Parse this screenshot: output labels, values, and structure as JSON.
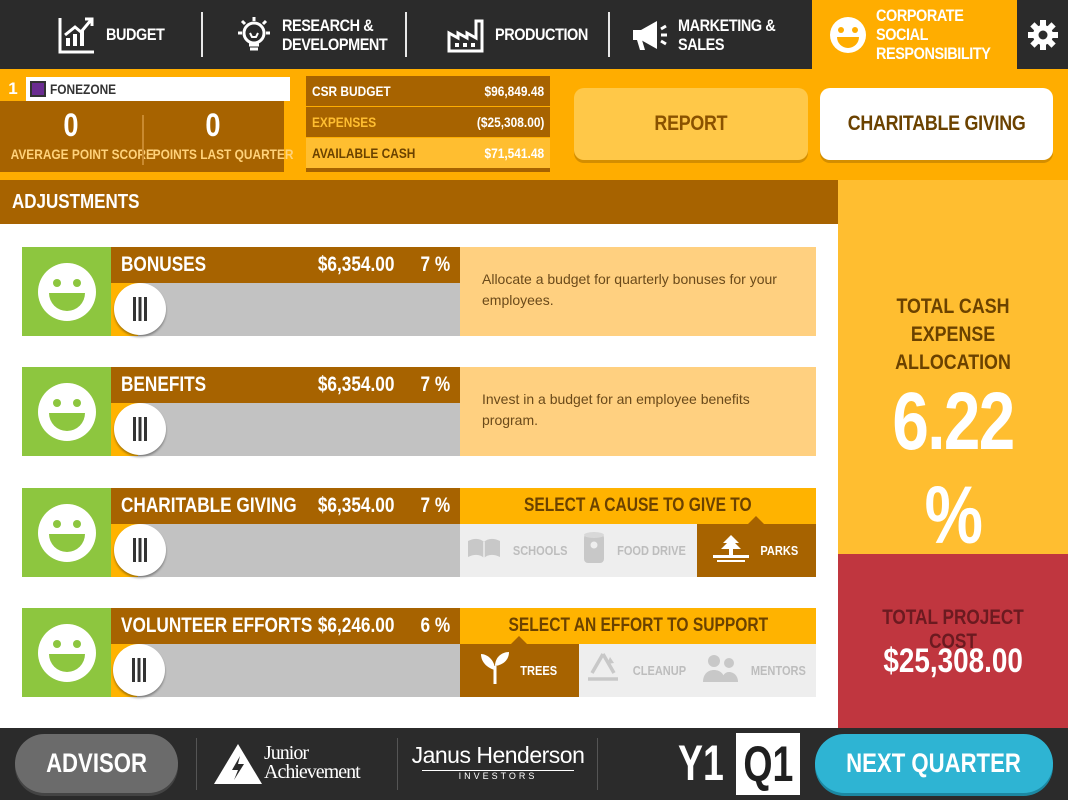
{
  "nav": {
    "tabs": [
      {
        "label": "BUDGET",
        "icon": "chart-up-icon"
      },
      {
        "label": "RESEARCH &\nDEVELOPMENT",
        "icon": "lightbulb-icon"
      },
      {
        "label": "PRODUCTION",
        "icon": "factory-icon"
      },
      {
        "label": "MARKETING &\nSALES",
        "icon": "megaphone-icon"
      },
      {
        "label": "CORPORATE SOCIAL\nRESPONSIBILITY",
        "icon": "smiley-icon",
        "active": true
      }
    ],
    "settings_icon": "gear-icon"
  },
  "team": {
    "rank": "1",
    "name": "FONEZONE",
    "average_point_score": "0",
    "average_point_score_label": "AVERAGE POINT SCORE",
    "points_last_quarter": "0",
    "points_last_quarter_label": "POINTS LAST QUARTER"
  },
  "budget": {
    "csr_budget_label": "CSR BUDGET",
    "csr_budget_value": "$96,849.48",
    "expenses_label": "EXPENSES",
    "expenses_value": "($25,308.00)",
    "available_cash_label": "AVAILABLE CASH",
    "available_cash_value": "$71,541.48"
  },
  "header_buttons": {
    "report": "REPORT",
    "charitable_giving": "CHARITABLE GIVING"
  },
  "adjustments": {
    "title": "ADJUSTMENTS",
    "rows": [
      {
        "name": "BONUSES",
        "amount": "$6,354.00",
        "percent": "7 %",
        "slider_fraction": 0.07,
        "description": "Allocate a budget for quarterly bonuses for your employees."
      },
      {
        "name": "BENEFITS",
        "amount": "$6,354.00",
        "percent": "7 %",
        "slider_fraction": 0.07,
        "description": "Invest in a budget for an employee benefits program."
      },
      {
        "name": "CHARITABLE GIVING",
        "amount": "$6,354.00",
        "percent": "7 %",
        "slider_fraction": 0.07,
        "select_title": "SELECT A CAUSE TO GIVE TO",
        "options": [
          {
            "label": "SCHOOLS",
            "icon": "book-icon",
            "selected": false
          },
          {
            "label": "FOOD DRIVE",
            "icon": "can-icon",
            "selected": false
          },
          {
            "label": "PARKS",
            "icon": "tree-icon",
            "selected": true
          }
        ]
      },
      {
        "name": "VOLUNTEER EFFORTS",
        "amount": "$6,246.00",
        "percent": "6 %",
        "slider_fraction": 0.06,
        "select_title": "SELECT AN EFFORT TO SUPPORT",
        "options": [
          {
            "label": "TREES",
            "icon": "sprout-icon",
            "selected": true
          },
          {
            "label": "CLEANUP",
            "icon": "recycle-icon",
            "selected": false
          },
          {
            "label": "MENTORS",
            "icon": "people-icon",
            "selected": false
          }
        ]
      }
    ]
  },
  "summary": {
    "allocation_label_line1": "TOTAL CASH",
    "allocation_label_line2": "EXPENSE ALLOCATION",
    "allocation_value": "6.22 %",
    "project_cost_label": "TOTAL PROJECT COST",
    "project_cost_value": "$25,308.00"
  },
  "footer": {
    "advisor": "ADVISOR",
    "ja_logo_text": "Junior Achievement",
    "jh_logo_text": "Janus Henderson",
    "jh_logo_sub": "INVESTORS",
    "year": "Y1",
    "quarter": "Q1",
    "next_quarter": "NEXT QUARTER"
  },
  "colors": {
    "nav_bg": "#2b2b2b",
    "accent_orange": "#ffad00",
    "brown": "#a76300",
    "green_face": "#8dc63f",
    "cost_red": "#c0363f",
    "next_blue": "#2eb4d3"
  }
}
